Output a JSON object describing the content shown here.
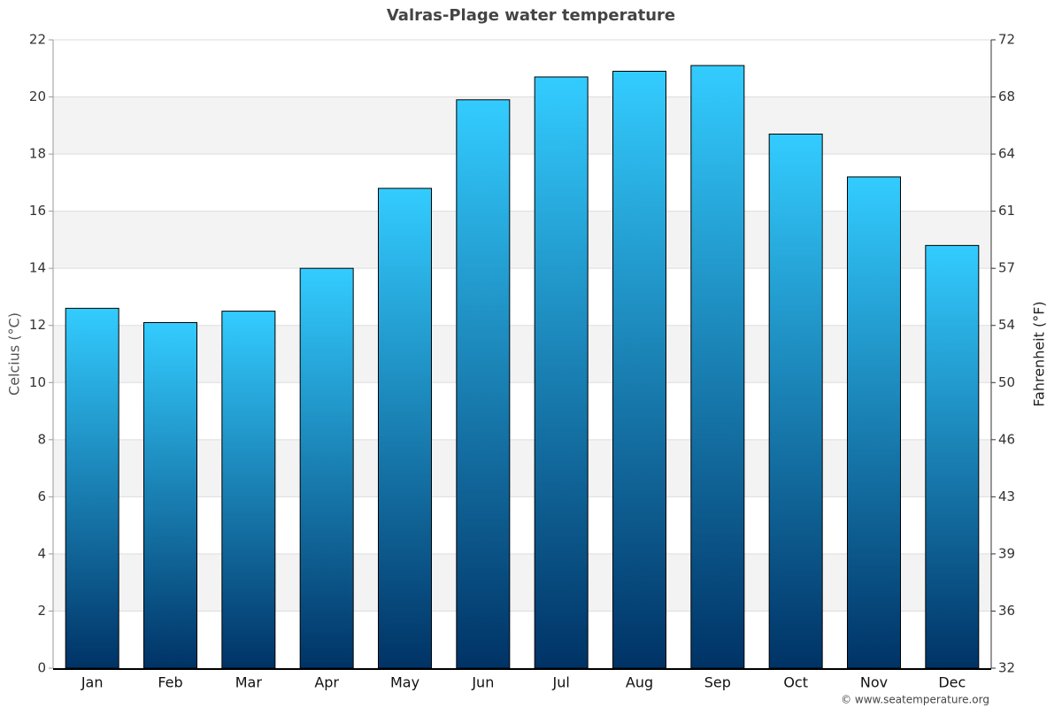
{
  "chart_data": {
    "type": "bar",
    "title": "Valras-Plage water temperature",
    "categories": [
      "Jan",
      "Feb",
      "Mar",
      "Apr",
      "May",
      "Jun",
      "Jul",
      "Aug",
      "Sep",
      "Oct",
      "Nov",
      "Dec"
    ],
    "values": [
      12.6,
      12.1,
      12.5,
      14.0,
      16.8,
      19.9,
      20.7,
      20.9,
      21.1,
      18.7,
      17.2,
      14.8
    ],
    "color_top": "#33ccff",
    "color_bottom": "#003366",
    "y_label": "Celcius (°C)",
    "y2_label": "Fahrenheit (°F)",
    "ylim": [
      0,
      22
    ],
    "yticks": [
      0,
      2,
      4,
      6,
      8,
      10,
      12,
      14,
      16,
      18,
      20,
      22
    ],
    "y2lim": [
      32,
      71.6
    ],
    "y2ticks": [
      32,
      {
        "value": 35.6,
        "label": "36"
      },
      {
        "value": 39.2,
        "label": "39"
      },
      {
        "value": 42.8,
        "label": "43"
      },
      {
        "value": 46.4,
        "label": "46"
      },
      50,
      {
        "value": 53.6,
        "label": "54"
      },
      {
        "value": 57.2,
        "label": "57"
      },
      {
        "value": 60.8,
        "label": "61"
      },
      {
        "value": 64.4,
        "label": "64"
      },
      68,
      {
        "value": 71.6,
        "label": "72"
      }
    ],
    "grid": true,
    "bands": true,
    "source": "© www.seatemperature.org"
  }
}
